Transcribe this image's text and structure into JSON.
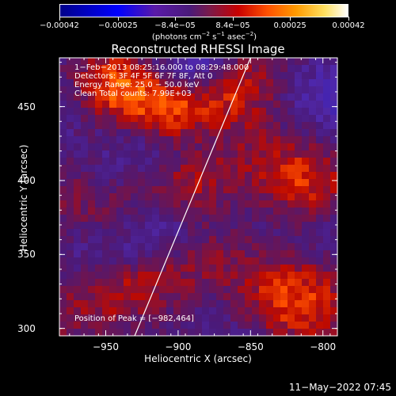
{
  "chart_data": {
    "type": "heatmap",
    "title": "Reconstructed RHESSI Image",
    "xlabel": "Heliocentric X (arcsec)",
    "ylabel": "Heliocentric Y (arcsec)",
    "xlim": [
      -982,
      -790
    ],
    "ylim": [
      295,
      483
    ],
    "xticks": [
      {
        "value": -950,
        "label": "−950"
      },
      {
        "value": -900,
        "label": "−900"
      },
      {
        "value": -850,
        "label": "−850"
      },
      {
        "value": -800,
        "label": "−800"
      }
    ],
    "yticks": [
      {
        "value": 300,
        "label": "300"
      },
      {
        "value": 350,
        "label": "350"
      },
      {
        "value": 400,
        "label": "400"
      },
      {
        "value": 450,
        "label": "450"
      }
    ],
    "colorbar": {
      "range": [
        -0.00042,
        0.00042
      ],
      "ticks": [
        {
          "value": -0.00042,
          "label": "−0.00042"
        },
        {
          "value": -0.00025,
          "label": "−0.00025"
        },
        {
          "value": -8.4e-05,
          "label": "−8.4e−05"
        },
        {
          "value": 8.4e-05,
          "label": "8.4e−05"
        },
        {
          "value": 0.00025,
          "label": "0.00025"
        },
        {
          "value": 0.00042,
          "label": "0.00042"
        }
      ],
      "units_text": "(photons cm",
      "units_exp1": "−2",
      "units_mid": " s",
      "units_exp2": "−1",
      "units_mid2": " asec",
      "units_exp3": "−2",
      "units_end": ")"
    },
    "limb_line": {
      "x": [
        -930,
        -850
      ],
      "y": [
        295,
        483
      ]
    },
    "peak": {
      "x": -982,
      "y": 464
    },
    "colors": {
      "background": "#000000",
      "grid_base": "#4a1a7a",
      "limb": "#ffffff"
    }
  },
  "annotations": {
    "time": "1−Feb−2013 08:25:16.000 to 08:29:48.000",
    "detectors": "Detectors: 3F 4F 5F 6F 7F 8F, Att 0",
    "energy": "Energy Range: 25.0 − 50.0 keV",
    "clean": "Clean     Total counts: 7.99E+03",
    "peak": "Position of Peak = [−982,464]"
  },
  "timestamp": "11−May−2022 07:45"
}
